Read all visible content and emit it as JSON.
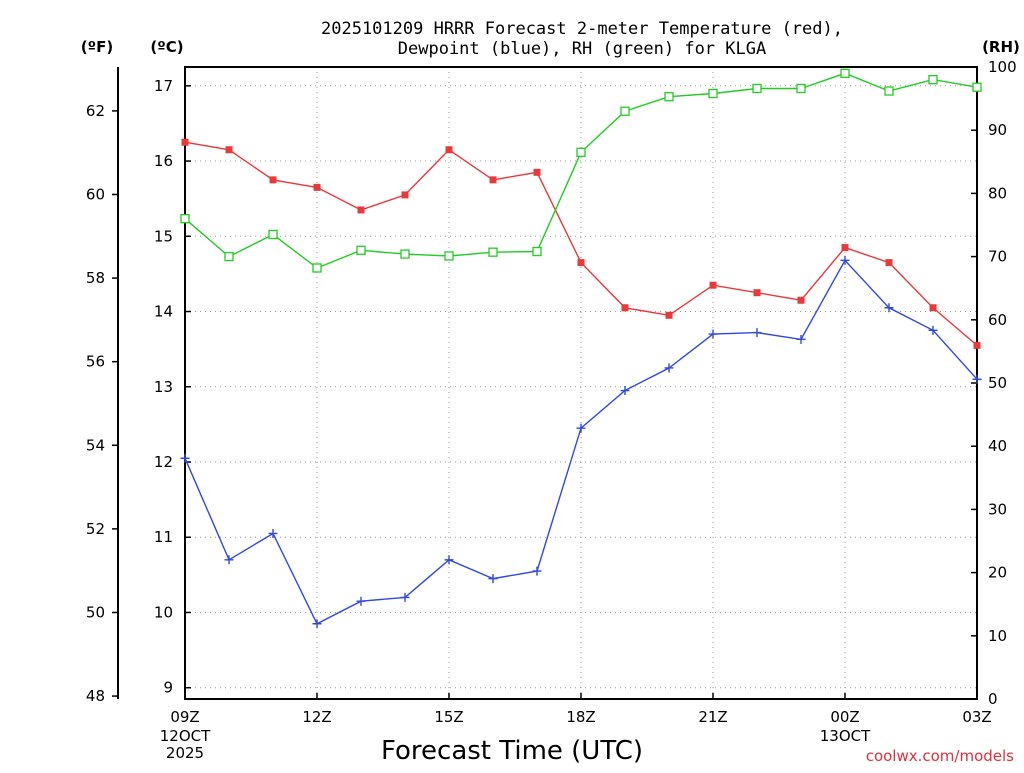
{
  "chart_data": {
    "type": "line",
    "title_line1": "2025101209 HRRR Forecast 2-meter Temperature (red),",
    "title_line2": "Dewpoint (blue), RH (green) for KLGA",
    "xlabel": "Forecast Time (UTC)",
    "credit": "coolwx.com/models",
    "credit_color": "#e0303a",
    "units": {
      "fahrenheit": "(ºF)",
      "celsius": "(ºC)",
      "rh": "(RH)"
    },
    "x_hours": [
      0,
      1,
      2,
      3,
      4,
      5,
      6,
      7,
      8,
      9,
      10,
      11,
      12,
      13,
      14,
      15,
      16,
      17,
      18
    ],
    "x_ticks": [
      {
        "hour": 0,
        "label": "09Z",
        "date": [
          "12OCT",
          "2025"
        ]
      },
      {
        "hour": 3,
        "label": "12Z",
        "date": []
      },
      {
        "hour": 6,
        "label": "15Z",
        "date": []
      },
      {
        "hour": 9,
        "label": "18Z",
        "date": []
      },
      {
        "hour": 12,
        "label": "21Z",
        "date": []
      },
      {
        "hour": 15,
        "label": "00Z",
        "date": [
          "13OCT"
        ]
      },
      {
        "hour": 18,
        "label": "03Z",
        "date": []
      }
    ],
    "y_celsius": {
      "min": 8.85,
      "max": 17.25,
      "ticks": [
        9,
        10,
        11,
        12,
        13,
        14,
        15,
        16,
        17
      ]
    },
    "y_fahrenheit": {
      "ticks": [
        48,
        50,
        52,
        54,
        56,
        58,
        60,
        62
      ]
    },
    "y_rh": {
      "min": 0,
      "max": 100,
      "ticks": [
        0,
        10,
        20,
        30,
        40,
        50,
        60,
        70,
        80,
        90,
        100
      ]
    },
    "series": [
      {
        "name": "Temperature",
        "unit": "C",
        "color": "#e8393b",
        "marker": "filled-square",
        "values": [
          16.25,
          16.15,
          15.75,
          15.65,
          15.35,
          15.55,
          16.15,
          15.75,
          15.85,
          14.65,
          14.05,
          13.95,
          14.35,
          14.25,
          14.15,
          14.85,
          14.65,
          14.05,
          13.55
        ]
      },
      {
        "name": "Dewpoint",
        "unit": "C",
        "color": "#2f48e0",
        "marker": "plus",
        "values": [
          12.05,
          10.7,
          11.05,
          9.85,
          10.15,
          10.2,
          10.7,
          10.45,
          10.55,
          12.45,
          12.95,
          13.25,
          13.7,
          13.72,
          13.63,
          14.68,
          14.05,
          13.75,
          13.1
        ]
      },
      {
        "name": "RH",
        "unit": "%",
        "color": "#22cc22",
        "marker": "open-square",
        "values": [
          76,
          70,
          73.5,
          68.2,
          71,
          70.4,
          70.1,
          70.7,
          70.8,
          86.5,
          93,
          95.3,
          95.8,
          96.6,
          96.6,
          99,
          96.2,
          98,
          96.8
        ]
      }
    ],
    "grid": true
  }
}
